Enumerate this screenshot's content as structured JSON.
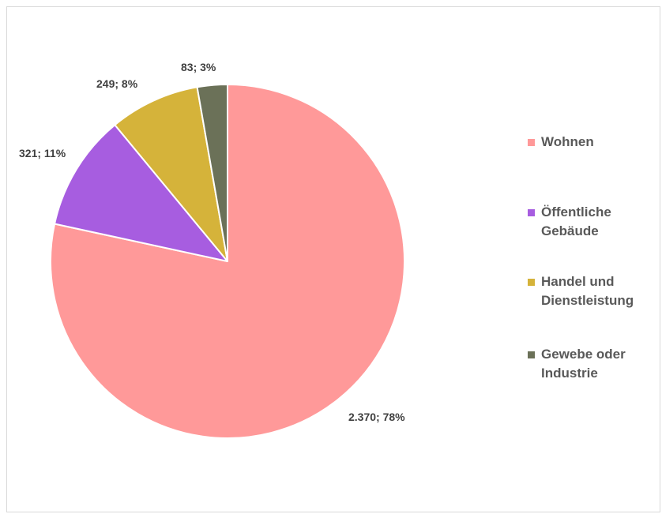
{
  "chart_data": {
    "type": "pie",
    "title": "",
    "start_angle_deg": 0,
    "direction": "clockwise",
    "series": [
      {
        "values": [
          2370,
          321,
          249,
          83
        ]
      }
    ],
    "categories": [
      "Wohnen",
      "Öffentliche Gebäude",
      "Handel und Dienstleistung",
      "Gewebe oder Industrie"
    ],
    "slices": [
      {
        "label": "Wohnen",
        "value": 2370,
        "percent": 78,
        "data_label": "2.370; 78%",
        "color": "#ff9999"
      },
      {
        "label": "Öffentliche Gebäude",
        "value": 321,
        "percent": 11,
        "data_label": "321; 11%",
        "color": "#a75de0"
      },
      {
        "label": "Handel und Dienstleistung",
        "value": 249,
        "percent": 8,
        "data_label": "249; 8%",
        "color": "#d5b33a"
      },
      {
        "label": "Gewebe oder Industrie",
        "value": 83,
        "percent": 3,
        "data_label": "83; 3%",
        "color": "#6b7158"
      }
    ],
    "legend": {
      "position": "right",
      "items": [
        {
          "line1": "Wohnen",
          "line2": ""
        },
        {
          "line1": "Öffentliche",
          "line2": "Gebäude"
        },
        {
          "line1": "Handel und",
          "line2": "Dienstleistung"
        },
        {
          "line1": "Gewebe oder",
          "line2": "Industrie"
        }
      ]
    }
  }
}
